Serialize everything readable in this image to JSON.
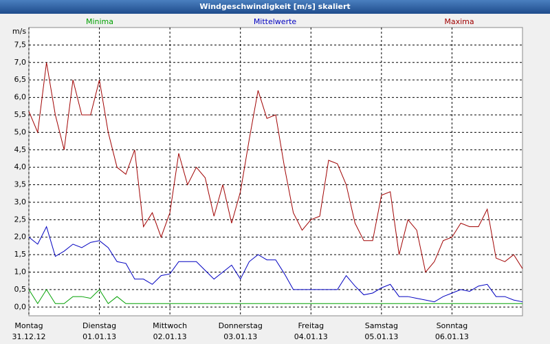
{
  "chart_data": {
    "type": "line",
    "title": "Windgeschwindigkeit [m/s] skaliert",
    "y_unit": "m/s",
    "x": [
      0,
      0.125,
      0.25,
      0.375,
      0.5,
      0.625,
      0.75,
      0.875,
      1,
      1.125,
      1.25,
      1.375,
      1.5,
      1.625,
      1.75,
      1.875,
      2,
      2.125,
      2.25,
      2.375,
      2.5,
      2.625,
      2.75,
      2.875,
      3,
      3.125,
      3.25,
      3.375,
      3.5,
      3.625,
      3.75,
      3.875,
      4,
      4.125,
      4.25,
      4.375,
      4.5,
      4.625,
      4.75,
      4.875,
      5,
      5.125,
      5.25,
      5.375,
      5.5,
      5.625,
      5.75,
      5.875,
      6,
      6.125,
      6.25,
      6.375,
      6.5,
      6.625,
      6.75,
      6.875,
      7
    ],
    "series": [
      {
        "name": "Minima",
        "color": "#00a000",
        "values": [
          0.5,
          0.1,
          0.5,
          0.1,
          0.1,
          0.3,
          0.3,
          0.25,
          0.5,
          0.1,
          0.3,
          0.1,
          0.1,
          0.1,
          0.1,
          0.1,
          0.1,
          0.1,
          0.1,
          0.1,
          0.1,
          0.1,
          0.1,
          0.1,
          0.1,
          0.1,
          0.1,
          0.1,
          0.1,
          0.1,
          0.1,
          0.1,
          0.1,
          0.1,
          0.1,
          0.1,
          0.1,
          0.1,
          0.1,
          0.1,
          0.1,
          0.1,
          0.1,
          0.1,
          0.1,
          0.1,
          0.1,
          0.1,
          0.1,
          0.1,
          0.1,
          0.1,
          0.1,
          0.1,
          0.1,
          0.1,
          0.1
        ]
      },
      {
        "name": "Mittelwerte",
        "color": "#0000c0",
        "values": [
          2.0,
          1.8,
          2.3,
          1.45,
          1.6,
          1.8,
          1.7,
          1.85,
          1.9,
          1.7,
          1.3,
          1.25,
          0.8,
          0.8,
          0.65,
          0.9,
          0.95,
          1.3,
          1.3,
          1.3,
          1.05,
          0.8,
          1.0,
          1.2,
          0.8,
          1.3,
          1.5,
          1.35,
          1.35,
          0.95,
          0.5,
          0.5,
          0.5,
          0.5,
          0.5,
          0.5,
          0.9,
          0.6,
          0.35,
          0.4,
          0.55,
          0.65,
          0.3,
          0.3,
          0.25,
          0.2,
          0.15,
          0.3,
          0.4,
          0.5,
          0.45,
          0.6,
          0.65,
          0.3,
          0.3,
          0.2,
          0.15
        ]
      },
      {
        "name": "Maxima",
        "color": "#a00000",
        "values": [
          5.6,
          5.0,
          7.0,
          5.5,
          4.5,
          6.5,
          5.5,
          5.5,
          6.5,
          5.0,
          4.0,
          3.8,
          4.5,
          2.3,
          2.7,
          2.0,
          2.7,
          4.4,
          3.5,
          4.0,
          3.7,
          2.6,
          3.5,
          2.4,
          3.3,
          4.8,
          6.2,
          5.4,
          5.5,
          4.0,
          2.7,
          2.2,
          2.5,
          2.6,
          4.2,
          4.1,
          3.5,
          2.4,
          1.9,
          1.9,
          3.2,
          3.3,
          1.5,
          2.5,
          2.2,
          1.0,
          1.3,
          1.9,
          2.0,
          2.4,
          2.3,
          2.3,
          2.8,
          1.4,
          1.3,
          1.5,
          1.1
        ]
      }
    ],
    "xlim": [
      0,
      7
    ],
    "xticks": [
      {
        "value": 0,
        "label": "Montag",
        "date": "31.12.12"
      },
      {
        "value": 1,
        "label": "Dienstag",
        "date": "01.01.13"
      },
      {
        "value": 2,
        "label": "Mittwoch",
        "date": "02.01.13"
      },
      {
        "value": 3,
        "label": "Donnerstag",
        "date": "03.01.13"
      },
      {
        "value": 4,
        "label": "Freitag",
        "date": "04.01.13"
      },
      {
        "value": 5,
        "label": "Samstag",
        "date": "05.01.13"
      },
      {
        "value": 6,
        "label": "Sonntag",
        "date": "06.01.13"
      }
    ],
    "ylim": [
      -0.25,
      8
    ],
    "yticks": [
      {
        "value": 0,
        "label": "0,0"
      },
      {
        "value": 0.5,
        "label": "0,5"
      },
      {
        "value": 1,
        "label": "1,0"
      },
      {
        "value": 1.5,
        "label": "1,5"
      },
      {
        "value": 2,
        "label": "2,0"
      },
      {
        "value": 2.5,
        "label": "2,5"
      },
      {
        "value": 3,
        "label": "3,0"
      },
      {
        "value": 3.5,
        "label": "3,5"
      },
      {
        "value": 4,
        "label": "4,0"
      },
      {
        "value": 4.5,
        "label": "4,5"
      },
      {
        "value": 5,
        "label": "5,0"
      },
      {
        "value": 5.5,
        "label": "5,5"
      },
      {
        "value": 6,
        "label": "6,0"
      },
      {
        "value": 6.5,
        "label": "6,5"
      },
      {
        "value": 7,
        "label": "7,0"
      },
      {
        "value": 7.5,
        "label": "7,5"
      }
    ],
    "grid": true
  }
}
